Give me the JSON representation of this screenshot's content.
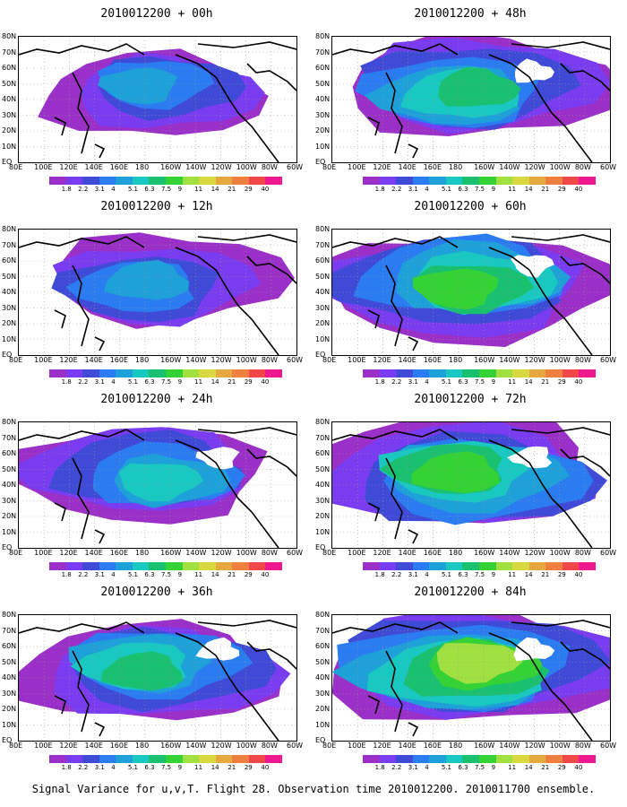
{
  "figure": {
    "caption": "Signal Variance for u,v,T. Flight 28. Observation time 2010012200. 2010011700 ensemble."
  },
  "axes": {
    "lat_labels": [
      "80N",
      "70N",
      "60N",
      "50N",
      "40N",
      "30N",
      "20N",
      "10N",
      "EQ"
    ],
    "lon_labels": [
      "80E",
      "100E",
      "120E",
      "140E",
      "160E",
      "180",
      "160W",
      "140W",
      "120W",
      "100W",
      "80W",
      "60W"
    ]
  },
  "colorbar": {
    "levels": [
      "1.8",
      "2.2",
      "3.1",
      "4",
      "5.1",
      "6.3",
      "7.5",
      "9",
      "11",
      "14",
      "21",
      "29",
      "40"
    ],
    "colors": [
      "#9b30c8",
      "#7a3cf0",
      "#3f4ad6",
      "#2a7cf0",
      "#1ea0d8",
      "#19c8c0",
      "#19c070",
      "#35d235",
      "#a0e040",
      "#d8d840",
      "#e8a840",
      "#f08040",
      "#f04848",
      "#f01890"
    ]
  },
  "panels": [
    {
      "title": "2010012200 + 00h",
      "intensity": 0.2
    },
    {
      "title": "2010012200 + 48h",
      "intensity": 0.5
    },
    {
      "title": "2010012200 + 12h",
      "intensity": 0.3
    },
    {
      "title": "2010012200 + 60h",
      "intensity": 0.6
    },
    {
      "title": "2010012200 + 24h",
      "intensity": 0.4
    },
    {
      "title": "2010012200 + 72h",
      "intensity": 0.65
    },
    {
      "title": "2010012200 + 36h",
      "intensity": 0.45
    },
    {
      "title": "2010012200 + 84h",
      "intensity": 0.7
    }
  ]
}
